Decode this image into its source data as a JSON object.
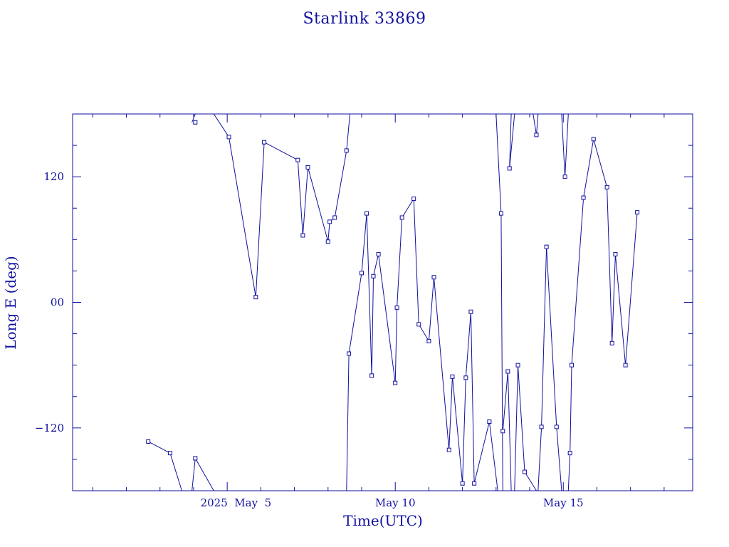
{
  "chart_data": {
    "type": "line",
    "title": "Starlink 33869",
    "xlabel": "Time(UTC)",
    "ylabel": "Long E (deg)",
    "x_unit": "days (May 2025, UTC)",
    "xlim": [
      0.4,
      18.85
    ],
    "ylim": [
      -180,
      180
    ],
    "grid": false,
    "legend": "none",
    "color": "#1010a0",
    "x_ticks": [
      {
        "value": 5,
        "label": "2025  May  5"
      },
      {
        "value": 10,
        "label": "May 10"
      },
      {
        "value": 15,
        "label": "May 15"
      }
    ],
    "y_ticks": [
      {
        "value": 120,
        "label": "120"
      },
      {
        "value": 0,
        "label": "00"
      },
      {
        "value": -120,
        "label": "−120"
      }
    ],
    "segments": [
      [
        [
          2.65,
          -133
        ],
        [
          3.3,
          -144
        ],
        [
          3.65,
          -180
        ]
      ],
      [
        [
          3.95,
          -180
        ],
        [
          4.05,
          -149
        ],
        [
          4.6,
          -180
        ]
      ],
      [
        [
          3.95,
          172
        ],
        [
          4.05,
          180
        ]
      ],
      [
        [
          4.6,
          180
        ],
        [
          5.05,
          158
        ]
      ],
      [
        [
          5.05,
          158
        ],
        [
          5.85,
          5
        ]
      ],
      [
        [
          5.85,
          5
        ],
        [
          6.1,
          153
        ]
      ],
      [
        [
          6.1,
          153
        ],
        [
          7.1,
          136
        ]
      ],
      [
        [
          7.1,
          136
        ],
        [
          7.25,
          64
        ]
      ],
      [
        [
          7.25,
          64
        ],
        [
          7.4,
          129
        ]
      ],
      [
        [
          7.4,
          129
        ],
        [
          8.0,
          58
        ]
      ],
      [
        [
          8.0,
          58
        ],
        [
          8.05,
          77
        ]
      ],
      [
        [
          8.05,
          77
        ],
        [
          8.2,
          81
        ]
      ],
      [
        [
          8.2,
          81
        ],
        [
          8.55,
          145
        ]
      ],
      [
        [
          8.55,
          145
        ],
        [
          8.65,
          180
        ]
      ],
      [
        [
          8.55,
          -180
        ],
        [
          8.62,
          -49
        ]
      ],
      [
        [
          8.62,
          -49
        ],
        [
          9.0,
          28
        ]
      ],
      [
        [
          9.0,
          28
        ],
        [
          9.15,
          85
        ]
      ],
      [
        [
          9.15,
          85
        ],
        [
          9.3,
          -70
        ]
      ],
      [
        [
          9.3,
          -70
        ],
        [
          9.35,
          25
        ]
      ],
      [
        [
          9.35,
          25
        ],
        [
          9.5,
          46
        ]
      ],
      [
        [
          9.5,
          46
        ],
        [
          10.0,
          -77
        ]
      ],
      [
        [
          10.0,
          -77
        ],
        [
          10.05,
          -5
        ]
      ],
      [
        [
          10.05,
          -5
        ],
        [
          10.2,
          81
        ]
      ],
      [
        [
          10.2,
          81
        ],
        [
          10.55,
          99
        ]
      ],
      [
        [
          10.55,
          99
        ],
        [
          10.7,
          -21
        ]
      ],
      [
        [
          10.7,
          -21
        ],
        [
          11.0,
          -37
        ]
      ],
      [
        [
          11.0,
          -37
        ],
        [
          11.15,
          24
        ]
      ],
      [
        [
          11.15,
          24
        ],
        [
          11.6,
          -141
        ]
      ],
      [
        [
          11.6,
          -141
        ],
        [
          11.7,
          -71
        ]
      ],
      [
        [
          11.7,
          -71
        ],
        [
          12.0,
          -173
        ]
      ],
      [
        [
          12.0,
          -173
        ],
        [
          12.1,
          -72
        ]
      ],
      [
        [
          12.1,
          -72
        ],
        [
          12.25,
          -9
        ]
      ],
      [
        [
          12.25,
          -9
        ],
        [
          12.35,
          -173
        ]
      ],
      [
        [
          12.35,
          -173
        ],
        [
          12.8,
          -114
        ]
      ],
      [
        [
          12.8,
          -114
        ],
        [
          13.05,
          -180
        ]
      ],
      [
        [
          13.0,
          180
        ],
        [
          13.15,
          85
        ]
      ],
      [
        [
          13.15,
          85
        ],
        [
          13.2,
          -180
        ]
      ],
      [
        [
          13.2,
          -123
        ],
        [
          13.35,
          -66
        ]
      ],
      [
        [
          13.35,
          -66
        ],
        [
          13.45,
          -180
        ]
      ],
      [
        [
          13.45,
          180
        ],
        [
          13.4,
          128
        ]
      ],
      [
        [
          13.4,
          128
        ],
        [
          13.55,
          180
        ]
      ],
      [
        [
          13.55,
          -180
        ],
        [
          13.65,
          -60
        ]
      ],
      [
        [
          13.65,
          -60
        ],
        [
          13.85,
          -162
        ]
      ],
      [
        [
          13.85,
          -162
        ],
        [
          14.2,
          -180
        ]
      ],
      [
        [
          14.1,
          180
        ],
        [
          14.2,
          160
        ]
      ],
      [
        [
          14.2,
          160
        ],
        [
          14.25,
          180
        ]
      ],
      [
        [
          14.25,
          -180
        ],
        [
          14.35,
          -119
        ]
      ],
      [
        [
          14.35,
          -119
        ],
        [
          14.5,
          53
        ]
      ],
      [
        [
          14.5,
          53
        ],
        [
          14.8,
          -119
        ]
      ],
      [
        [
          14.8,
          -119
        ],
        [
          14.95,
          -180
        ]
      ],
      [
        [
          14.95,
          180
        ],
        [
          15.05,
          120
        ]
      ],
      [
        [
          15.05,
          120
        ],
        [
          15.15,
          180
        ]
      ],
      [
        [
          15.15,
          -180
        ],
        [
          15.2,
          -144
        ]
      ],
      [
        [
          15.2,
          -144
        ],
        [
          15.25,
          -60
        ]
      ],
      [
        [
          15.25,
          -60
        ],
        [
          15.6,
          100
        ]
      ],
      [
        [
          15.6,
          100
        ],
        [
          15.9,
          156
        ]
      ],
      [
        [
          15.9,
          156
        ],
        [
          16.3,
          110
        ]
      ],
      [
        [
          16.3,
          110
        ],
        [
          16.45,
          -39
        ]
      ],
      [
        [
          16.45,
          -39
        ],
        [
          16.55,
          46
        ]
      ],
      [
        [
          16.55,
          46
        ],
        [
          16.85,
          -60
        ]
      ],
      [
        [
          16.85,
          -60
        ],
        [
          17.2,
          86
        ]
      ]
    ],
    "points": [
      [
        2.65,
        -133
      ],
      [
        3.3,
        -144
      ],
      [
        4.05,
        172
      ],
      [
        4.05,
        -149
      ],
      [
        5.05,
        158
      ],
      [
        5.85,
        5
      ],
      [
        6.1,
        153
      ],
      [
        7.1,
        136
      ],
      [
        7.25,
        64
      ],
      [
        7.4,
        129
      ],
      [
        8.0,
        58
      ],
      [
        8.05,
        77
      ],
      [
        8.2,
        81
      ],
      [
        8.55,
        145
      ],
      [
        8.62,
        -49
      ],
      [
        9.0,
        28
      ],
      [
        9.15,
        85
      ],
      [
        9.3,
        -70
      ],
      [
        9.35,
        25
      ],
      [
        9.5,
        46
      ],
      [
        10.0,
        -77
      ],
      [
        10.05,
        -5
      ],
      [
        10.2,
        81
      ],
      [
        10.55,
        99
      ],
      [
        10.7,
        -21
      ],
      [
        11.0,
        -37
      ],
      [
        11.15,
        24
      ],
      [
        11.6,
        -141
      ],
      [
        11.7,
        -71
      ],
      [
        12.0,
        -173
      ],
      [
        12.1,
        -72
      ],
      [
        12.25,
        -9
      ],
      [
        12.35,
        -173
      ],
      [
        12.8,
        -114
      ],
      [
        13.15,
        85
      ],
      [
        13.2,
        -123
      ],
      [
        13.35,
        -66
      ],
      [
        13.4,
        128
      ],
      [
        13.65,
        -60
      ],
      [
        13.85,
        -162
      ],
      [
        14.2,
        160
      ],
      [
        14.35,
        -119
      ],
      [
        14.5,
        53
      ],
      [
        14.8,
        -119
      ],
      [
        15.05,
        120
      ],
      [
        15.2,
        -144
      ],
      [
        15.25,
        -60
      ],
      [
        15.6,
        100
      ],
      [
        15.9,
        156
      ],
      [
        16.3,
        110
      ],
      [
        16.45,
        -39
      ],
      [
        16.55,
        46
      ],
      [
        16.85,
        -60
      ],
      [
        17.2,
        86
      ]
    ]
  }
}
